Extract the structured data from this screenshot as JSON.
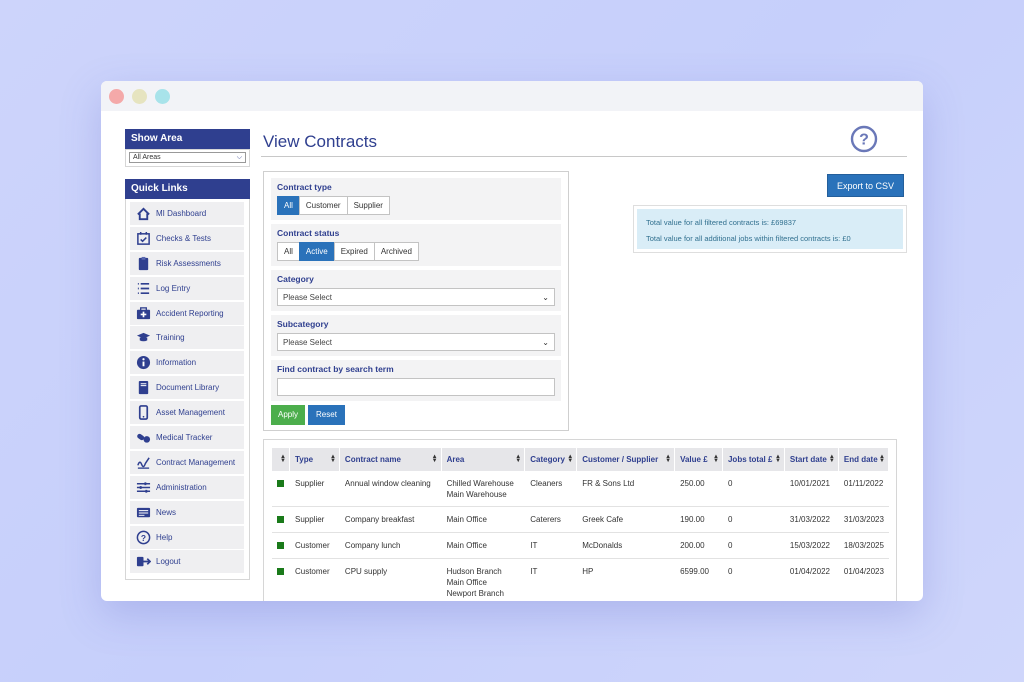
{
  "sidebar": {
    "show_area_title": "Show Area",
    "area_selected": "All Areas",
    "quick_links_title": "Quick Links",
    "items": [
      {
        "label": "MI Dashboard",
        "icon": "home-icon"
      },
      {
        "label": "Checks & Tests",
        "icon": "calendar-check-icon"
      },
      {
        "label": "Risk Assessments",
        "icon": "clipboard-icon"
      },
      {
        "label": "Log Entry",
        "icon": "list-icon"
      },
      {
        "label": "Accident Reporting",
        "icon": "first-aid-icon"
      },
      {
        "label": "Training",
        "icon": "graduation-cap-icon"
      },
      {
        "label": "Information",
        "icon": "info-icon"
      },
      {
        "label": "Document Library",
        "icon": "book-icon"
      },
      {
        "label": "Asset Management",
        "icon": "mobile-icon"
      },
      {
        "label": "Medical Tracker",
        "icon": "pills-icon"
      },
      {
        "label": "Contract Management",
        "icon": "signature-icon"
      },
      {
        "label": "Administration",
        "icon": "sliders-icon"
      },
      {
        "label": "News",
        "icon": "newspaper-icon"
      },
      {
        "label": "Help",
        "icon": "question-icon"
      },
      {
        "label": "Logout",
        "icon": "logout-icon"
      }
    ]
  },
  "page": {
    "title": "View Contracts",
    "export_label": "Export to CSV"
  },
  "filters": {
    "contract_type_label": "Contract type",
    "contract_type_options": [
      "All",
      "Customer",
      "Supplier"
    ],
    "contract_type_selected": "All",
    "contract_status_label": "Contract status",
    "contract_status_options": [
      "All",
      "Active",
      "Expired",
      "Archived"
    ],
    "contract_status_selected": "Active",
    "category_label": "Category",
    "category_value": "Please Select",
    "subcategory_label": "Subcategory",
    "subcategory_value": "Please Select",
    "search_label": "Find contract by search term",
    "search_value": "",
    "apply_label": "Apply",
    "reset_label": "Reset"
  },
  "summary": {
    "line1": "Total value for all filtered contracts is: £69837",
    "line2": "Total value for all additional jobs within filtered contracts is: £0"
  },
  "table": {
    "columns": [
      "",
      "Type",
      "Contract name",
      "Area",
      "Category",
      "Customer / Supplier",
      "Value £",
      "Jobs total £",
      "Start date",
      "End date"
    ],
    "rows": [
      {
        "status_color": "#1a7a1a",
        "type": "Supplier",
        "name": "Annual window cleaning",
        "area": [
          "Chilled Warehouse",
          "Main Warehouse"
        ],
        "category": "Cleaners",
        "party": "FR & Sons Ltd",
        "value": "250.00",
        "jobs": "0",
        "start": "10/01/2021",
        "end": "01/11/2022"
      },
      {
        "status_color": "#1a7a1a",
        "type": "Supplier",
        "name": "Company breakfast",
        "area": [
          "Main Office"
        ],
        "category": "Caterers",
        "party": "Greek Cafe",
        "value": "190.00",
        "jobs": "0",
        "start": "31/03/2022",
        "end": "31/03/2023"
      },
      {
        "status_color": "#1a7a1a",
        "type": "Customer",
        "name": "Company lunch",
        "area": [
          "Main Office"
        ],
        "category": "IT",
        "party": "McDonalds",
        "value": "200.00",
        "jobs": "0",
        "start": "15/03/2022",
        "end": "18/03/2025"
      },
      {
        "status_color": "#1a7a1a",
        "type": "Customer",
        "name": "CPU supply",
        "area": [
          "Hudson Branch",
          "Main Office",
          "Newport Branch"
        ],
        "category": "IT",
        "party": "HP",
        "value": "6599.00",
        "jobs": "0",
        "start": "01/04/2022",
        "end": "01/04/2023"
      }
    ]
  },
  "colors": {
    "brand": "#2f3f8f",
    "primary": "#2a72ba",
    "success": "#4cae4c"
  }
}
